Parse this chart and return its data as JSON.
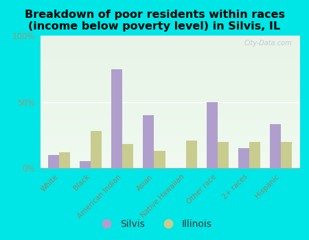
{
  "title": "Breakdown of poor residents within races\n(income below poverty level) in Silvis, IL",
  "categories": [
    "White",
    "Black",
    "American Indian",
    "Asian",
    "Native Hawaiian",
    "Other race",
    "2+ races",
    "Hispanic"
  ],
  "silvis": [
    10,
    5,
    75,
    40,
    0,
    50,
    15,
    33
  ],
  "illinois": [
    12,
    28,
    18,
    13,
    21,
    20,
    20,
    20
  ],
  "silvis_color": "#b09fcc",
  "illinois_color": "#c8cc8f",
  "background_color": "#00e5e5",
  "ylim": [
    0,
    100
  ],
  "ytick_labels": [
    "0%",
    "50%",
    "100%"
  ],
  "ytick_values": [
    0,
    50,
    100
  ],
  "watermark": "City-Data.com",
  "legend_silvis": "Silvis",
  "legend_illinois": "Illinois",
  "title_fontsize": 12,
  "tick_label_color": "#888866",
  "ytick_color": "#999977",
  "bar_width": 0.35
}
